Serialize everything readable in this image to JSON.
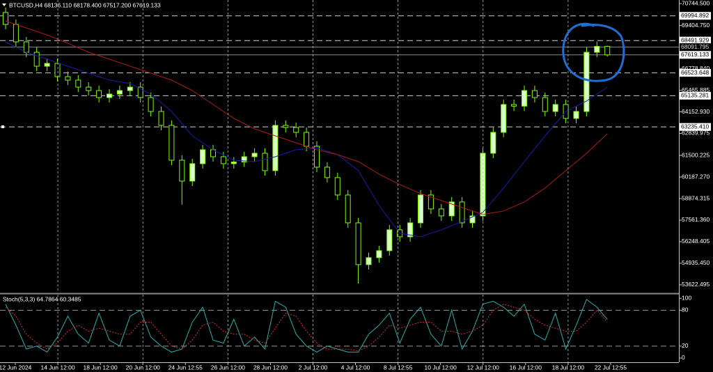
{
  "chart_data": [
    {
      "type": "candlestick",
      "title": "BTCUSD,H4  68136.110 68178.400 67517.200 67619.133",
      "ylim": [
        53150,
        70960
      ],
      "yticks": [
        {
          "value": 70744.5,
          "label": "70744.500"
        },
        {
          "value": 69404.75,
          "label": "69404.750"
        },
        {
          "value": 66778.84,
          "label": "66778.840"
        },
        65465.885,
        {
          "value": 64152.93,
          "label": "64152.930"
        },
        62839.975,
        61500.225,
        {
          "value": 60187.27,
          "label": "60187.270"
        },
        58874.315,
        {
          "value": 57561.36,
          "label": "57561.360"
        },
        56248.405,
        {
          "value": 54935.45,
          "label": "54935.450"
        },
        53622.495
      ],
      "levels": [
        69994.892,
        68491.929,
        66523.648,
        65135.281,
        {
          "value": 63235.41,
          "label": "63235.410"
        }
      ],
      "price_lines": [
        68091.795,
        67619.133
      ],
      "up_color": "#d9ffc4",
      "down_color": "#000000",
      "wick_color": "#7cfc00",
      "level_color": "#cfcfcf",
      "price_line_color": "#8a8a8a",
      "open": [
        70200,
        69473,
        68413,
        67778,
        66930,
        67100,
        66294,
        66082,
        65658,
        65447,
        65023,
        65235,
        65447,
        65658,
        65023,
        64175,
        63328,
        61209,
        59937,
        60997,
        61845,
        61421,
        60997,
        61100,
        61421,
        61632,
        60573,
        63328,
        63200,
        62904,
        62056,
        60785,
        60149,
        59090,
        57394,
        54852,
        55276,
        55700,
        56971,
        56547,
        57394,
        59090,
        58242,
        57818,
        58666,
        57394,
        57818,
        61632,
        62904,
        64599,
        64500,
        65447,
        65023,
        64175,
        64599,
        63751,
        64175,
        67778,
        68136.11
      ],
      "high": [
        70500,
        69773,
        68713,
        68078,
        67400,
        67400,
        66594,
        66382,
        65958,
        65747,
        65535,
        65747,
        65958,
        65958,
        65323,
        64475,
        63628,
        61509,
        61297,
        62145,
        62145,
        61721,
        61400,
        61721,
        61932,
        61932,
        63628,
        63628,
        63500,
        63204,
        62356,
        61085,
        60449,
        59390,
        57694,
        55576,
        56000,
        57271,
        57271,
        57694,
        59390,
        59390,
        58542,
        58966,
        58966,
        58118,
        61932,
        63204,
        64899,
        64899,
        65747,
        65747,
        65323,
        64899,
        64899,
        64475,
        68078,
        68436,
        68178.4
      ],
      "low": [
        69173,
        68113,
        67478,
        66630,
        66630,
        65994,
        65782,
        65358,
        65147,
        64723,
        64723,
        64935,
        65147,
        64723,
        63875,
        63028,
        60909,
        58500,
        59637,
        60697,
        61121,
        60697,
        60697,
        60800,
        61121,
        60273,
        60273,
        62900,
        62604,
        61756,
        60485,
        59849,
        58790,
        57094,
        53700,
        54552,
        54976,
        55400,
        56247,
        56247,
        57094,
        57942,
        57518,
        57518,
        57094,
        57094,
        57518,
        61332,
        62604,
        64200,
        64200,
        64723,
        63875,
        63875,
        63451,
        63451,
        63875,
        67478,
        67517.2
      ],
      "close": [
        69473,
        68413,
        67778,
        66930,
        67100,
        66294,
        66082,
        65658,
        65447,
        65023,
        65235,
        65447,
        65658,
        65023,
        64175,
        63328,
        61209,
        59937,
        60997,
        61845,
        61421,
        60997,
        61100,
        61421,
        61632,
        60573,
        63328,
        63200,
        62904,
        62056,
        60785,
        60149,
        59090,
        57394,
        54852,
        55276,
        55700,
        56971,
        56547,
        57394,
        59090,
        58242,
        57818,
        58666,
        57394,
        57818,
        61632,
        62904,
        64599,
        64500,
        65447,
        65023,
        64175,
        64599,
        63751,
        64175,
        67778,
        68136,
        67619.133
      ],
      "moving_averages": [
        {
          "color": "#1a1aa8",
          "values": [
            68413,
            68095,
            67778,
            67566,
            67354,
            67142,
            66930,
            66718,
            66506,
            66294,
            66082,
            65976,
            65870,
            65553,
            65235,
            64705,
            64175,
            63433,
            62692,
            62268,
            61845,
            61527,
            61209,
            61166,
            61124,
            61272,
            61421,
            61632,
            61845,
            61908,
            61972,
            61760,
            61548,
            61061,
            60573,
            59513,
            58454,
            57606,
            56759,
            56653,
            56547,
            56759,
            56971,
            57225,
            57479,
            57754,
            58030,
            58772,
            59513,
            60318,
            61124,
            61908,
            62692,
            63433,
            64175,
            64493,
            64811,
            65235,
            65658
          ]
        },
        {
          "color": "#b01818",
          "values": [
            69685,
            69473,
            69261,
            69049,
            68837,
            68583,
            68328,
            68053,
            67778,
            67566,
            67354,
            67142,
            66930,
            66718,
            66506,
            66294,
            66082,
            65765,
            65447,
            65023,
            64599,
            64175,
            63751,
            63433,
            63116,
            62904,
            62692,
            62480,
            62268,
            62056,
            61845,
            61697,
            61548,
            61336,
            61124,
            60743,
            60361,
            60043,
            59726,
            59450,
            59174,
            58962,
            58751,
            58539,
            58327,
            58115,
            57903,
            58009,
            58115,
            58391,
            58666,
            59090,
            59513,
            60043,
            60573,
            61103,
            61632,
            62226,
            62819
          ]
        }
      ]
    },
    {
      "type": "line",
      "title": "Stoch(5,3,3) 64.7864 60.3485",
      "ylim": [
        -7,
        106
      ],
      "yticks": [
        100,
        80,
        20,
        0
      ],
      "levels": [
        80,
        20
      ],
      "level_color": "#9a9a9a",
      "x_axis_labels": [
        "12 Jun 2024",
        "14 Jun 12:00",
        "18 Jun 12:00",
        "20 Jun 12:00",
        "24 Jun 12:55",
        "26 Jun 12:00",
        "28 Jun 12:00",
        "2 Jul 12:00",
        "4 Jul 12:00",
        "8 Jul 12:55",
        "10 Jul 12:00",
        "12 Jul 12:00",
        "16 Jul 12:00",
        "18 Jul 12:00",
        "22 Jul 12:55"
      ],
      "xgrid": true,
      "series": [
        {
          "color": "#20b2aa",
          "dashed": false,
          "values": [
            90,
            55,
            15,
            20,
            10,
            35,
            70,
            40,
            25,
            75,
            30,
            20,
            70,
            80,
            35,
            20,
            10,
            15,
            60,
            85,
            30,
            25,
            65,
            20,
            35,
            15,
            95,
            85,
            40,
            20,
            10,
            20,
            15,
            10,
            10,
            40,
            55,
            75,
            25,
            65,
            85,
            40,
            20,
            80,
            15,
            45,
            90,
            95,
            85,
            70,
            90,
            40,
            30,
            75,
            15,
            55,
            98,
            85,
            64.7864
          ]
        },
        {
          "color": "#e03030",
          "dashed": true,
          "values": [
            85,
            70,
            40,
            25,
            15,
            25,
            45,
            55,
            45,
            50,
            45,
            40,
            40,
            60,
            60,
            40,
            20,
            15,
            30,
            55,
            60,
            45,
            40,
            40,
            30,
            25,
            50,
            75,
            70,
            45,
            25,
            15,
            15,
            15,
            12,
            20,
            35,
            55,
            50,
            55,
            60,
            60,
            45,
            45,
            40,
            45,
            55,
            80,
            90,
            85,
            80,
            65,
            55,
            50,
            45,
            45,
            60,
            80,
            60.3485
          ]
        }
      ]
    }
  ]
}
